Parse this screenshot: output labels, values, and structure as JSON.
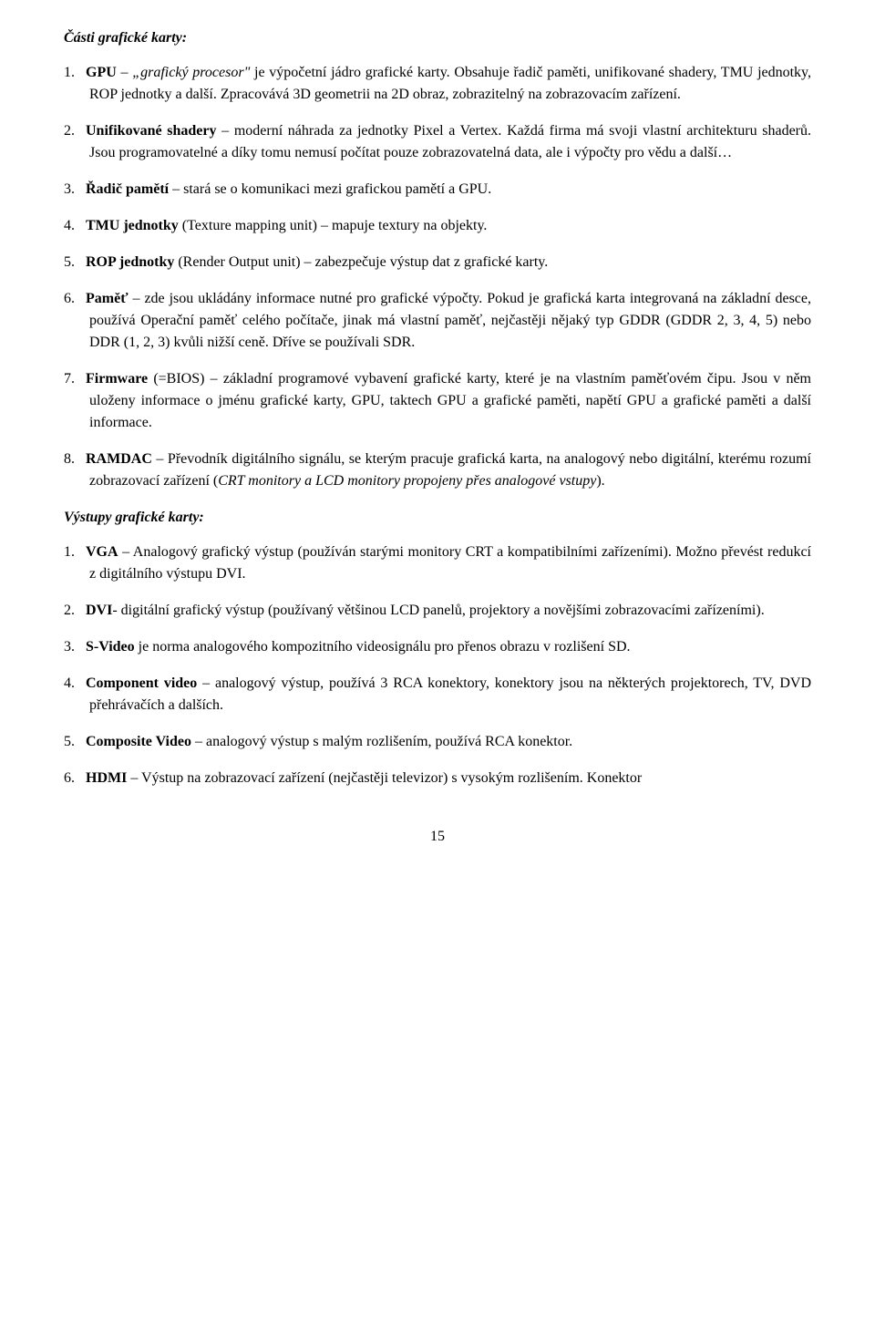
{
  "section1": {
    "title": "Části grafické karty:",
    "items": [
      {
        "label": "GPU",
        "sep": " – ",
        "text_a": "„grafický procesor\"",
        "text_b": " je výpočetní jádro grafické karty. Obsahuje řadič paměti, unifikované shadery, TMU jednotky, ROP jednotky a další. Zpracovává 3D geometrii na 2D obraz, zobrazitelný na zobrazovacím zařízení."
      },
      {
        "label": "Unifikované shadery",
        "sep": " – ",
        "text_b": "moderní náhrada za jednotky Pixel a Vertex. Každá firma má svoji vlastní architekturu shaderů. Jsou programovatelné a díky tomu nemusí počítat pouze zobrazovatelná data, ale i výpočty pro vědu a další…"
      },
      {
        "label": "Řadič pamětí",
        "sep": " – ",
        "text_b": "stará se o komunikaci mezi grafickou pamětí a GPU."
      },
      {
        "label": "TMU jednotky",
        "sep": " ",
        "text_b": "(Texture mapping unit) – mapuje textury na objekty."
      },
      {
        "label": "ROP jednotky",
        "sep": " ",
        "text_b": "(Render Output unit) – zabezpečuje výstup dat z grafické karty."
      },
      {
        "label": "Paměť",
        "sep": " – ",
        "text_b": "zde jsou ukládány informace nutné pro grafické výpočty. Pokud je grafická karta integrovaná na základní desce, používá Operační paměť celého počítače, jinak má vlastní paměť, nejčastěji nějaký typ GDDR (GDDR 2, 3, 4, 5) nebo DDR (1, 2, 3) kvůli nižší ceně. Dříve se používali SDR."
      },
      {
        "label": "Firmware",
        "sep": " ",
        "text_b": "(=BIOS) – základní programové vybavení grafické karty, které je na vlastním paměťovém čipu. Jsou v něm uloženy informace o jménu grafické karty, GPU, taktech GPU a grafické paměti, napětí GPU a grafické paměti a další informace."
      },
      {
        "label": "RAMDAC",
        "sep": " – ",
        "text_b": "Převodník digitálního signálu, se kterým pracuje grafická karta, na analogový nebo digitální, kterému rozumí zobrazovací zařízení (",
        "italic_tail": "CRT monitory a LCD monitory propojeny přes analogové vstupy",
        "tail_end": ")."
      }
    ]
  },
  "section2": {
    "title": "Výstupy grafické karty:",
    "items": [
      {
        "label": "VGA",
        "sep": " – ",
        "text_b": "Analogový grafický výstup (používán starými monitory CRT a kompatibilními zařízeními). Možno převést redukcí z digitálního výstupu DVI."
      },
      {
        "label": "DVI",
        "sep": "- ",
        "text_b": "digitální grafický výstup (používaný většinou LCD panelů, projektory a novějšími zobrazovacími zařízeními)."
      },
      {
        "label": "S-Video",
        "sep": " ",
        "text_b": "je norma analogového kompozitního videosignálu pro přenos obrazu v rozlišení SD."
      },
      {
        "label": "Component video",
        "sep": " – ",
        "text_b": "analogový výstup, používá 3 RCA konektory, konektory jsou na některých projektorech, TV, DVD přehrávačích a dalších."
      },
      {
        "label": "Composite Video",
        "sep": " – ",
        "text_b": "analogový výstup s malým rozlišením, používá RCA konektor."
      },
      {
        "label": "HDMI",
        "sep": " – ",
        "text_b": "Výstup na zobrazovací zařízení (nejčastěji televizor) s vysokým rozlišením. Konektor"
      }
    ]
  },
  "page_number": "15"
}
